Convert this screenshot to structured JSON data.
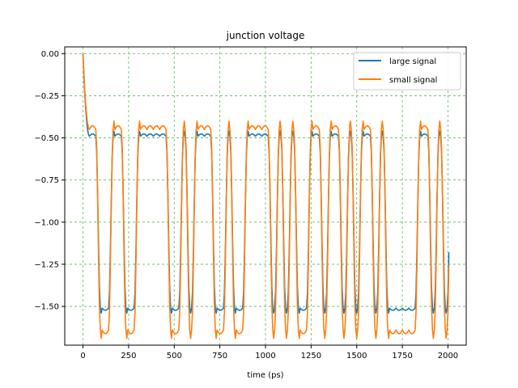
{
  "chart_data": {
    "type": "line",
    "title": "junction voltage",
    "xlabel": "time (ps)",
    "ylabel": "",
    "xlim": [
      -100,
      2100
    ],
    "ylim": [
      -1.73,
      0.04
    ],
    "xticks": [
      0,
      250,
      500,
      750,
      1000,
      1250,
      1500,
      1750,
      2000
    ],
    "yticks": [
      0.0,
      -0.25,
      -0.5,
      -0.75,
      -1.0,
      -1.25,
      -1.5
    ],
    "ytick_labels": [
      "0.00",
      "−0.25",
      "−0.50",
      "−0.75",
      "−1.00",
      "−1.25",
      "−1.50"
    ],
    "grid": true,
    "grid_color": "#5fb85f",
    "legend_position": "top-right",
    "bit_period_ps": 35,
    "bits": "110011001111100101110010011110101001101101011010000011010110",
    "series": [
      {
        "name": "large signal",
        "color": "#1f77b4",
        "high": -0.49,
        "low": -1.51,
        "overshoot": 0.03
      },
      {
        "name": "small signal",
        "color": "#ff7f0e",
        "high": -0.45,
        "low": -1.64,
        "overshoot": 0.05
      }
    ]
  }
}
